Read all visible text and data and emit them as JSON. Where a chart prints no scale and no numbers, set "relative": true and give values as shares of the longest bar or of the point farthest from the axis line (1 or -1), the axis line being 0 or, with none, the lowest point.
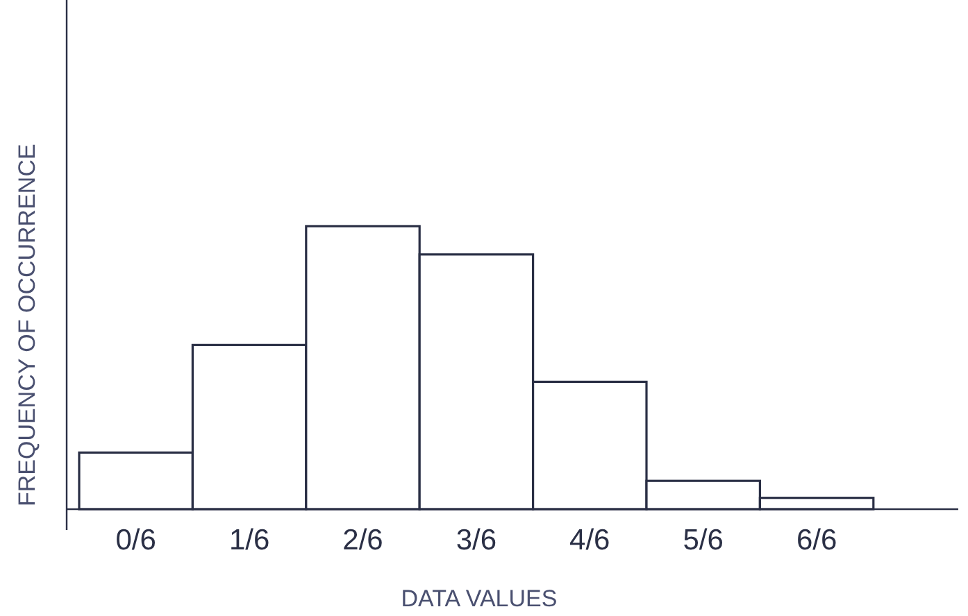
{
  "chart_data": {
    "type": "bar",
    "relative": true,
    "xlabel": "DATA VALUES",
    "ylabel": "FREQUENCY OF OCCURRENCE",
    "categories": [
      "0/6",
      "1/6",
      "2/6",
      "3/6",
      "4/6",
      "5/6",
      "6/6"
    ],
    "values": [
      0.2,
      0.58,
      1,
      0.9,
      0.45,
      0.1,
      0.04
    ],
    "color": "#ffffff"
  }
}
